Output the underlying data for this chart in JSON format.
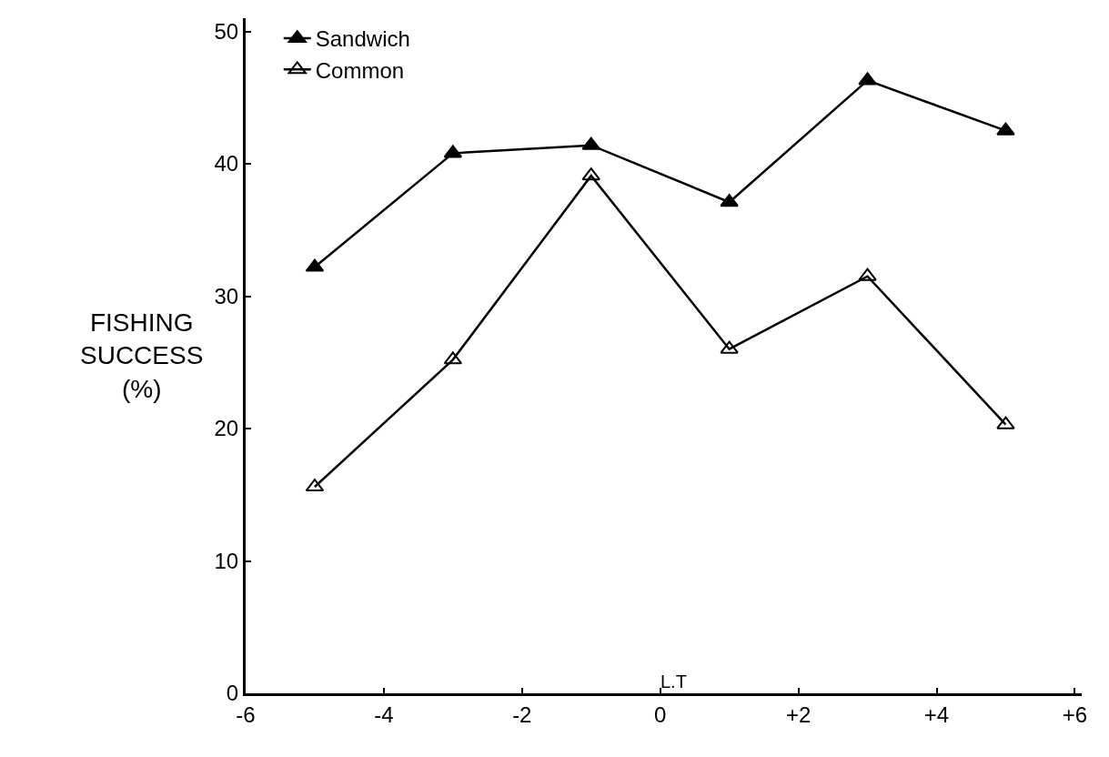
{
  "chart_data": {
    "type": "line",
    "xlabel": "L.T",
    "ylabel": "FISHING\nSUCCESS\n(%)",
    "x": [
      -5,
      -3,
      -1,
      1,
      3,
      5
    ],
    "series": [
      {
        "name": "Sandwich",
        "color": "#000000",
        "marker": "triangle",
        "values": [
          32.2,
          40.8,
          41.4,
          37.1,
          46.3,
          42.5
        ]
      },
      {
        "name": "Common",
        "color": "#000000",
        "marker": "triangle-open",
        "values": [
          15.6,
          25.2,
          39.1,
          26.0,
          31.5,
          20.3
        ]
      }
    ],
    "xlim": [
      -6,
      6.1
    ],
    "ylim": [
      0,
      51
    ],
    "xticks": [
      -6,
      -4,
      -2,
      0,
      {
        "value": 2,
        "label": "+2"
      },
      {
        "value": 4,
        "label": "+4"
      },
      {
        "value": 6,
        "label": "+6"
      }
    ],
    "yticks": [
      0,
      10,
      20,
      30,
      40,
      50
    ],
    "legend": "top left",
    "line_style": "solid"
  }
}
